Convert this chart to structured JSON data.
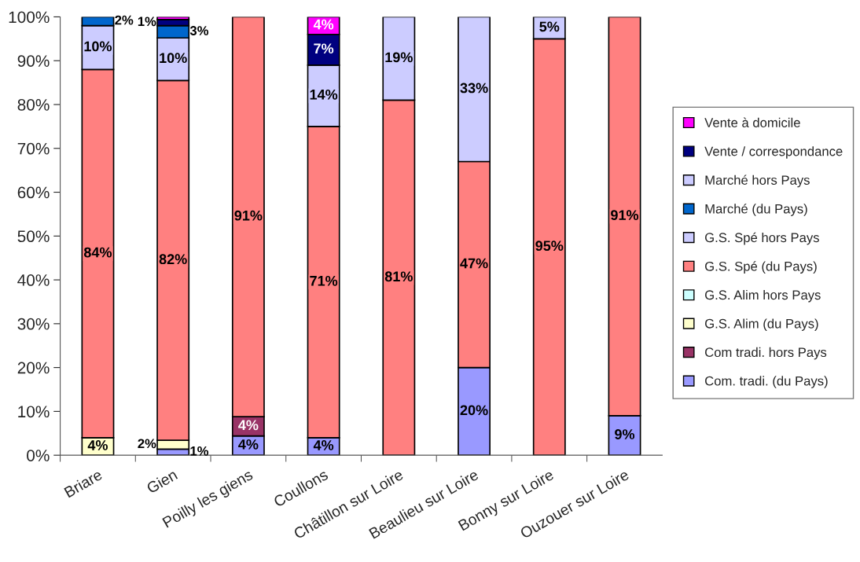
{
  "chart_data": {
    "type": "bar",
    "stacked": true,
    "categories": [
      "Briare",
      "Gien",
      "Poilly les giens",
      "Coullons",
      "Châtillon sur Loire",
      "Beaulieu sur Loire",
      "Bonny sur Loire",
      "Ouzouer sur Loire"
    ],
    "series": [
      {
        "name": "Com. tradi. (du Pays)",
        "color": "#9999ff",
        "values": [
          null,
          1.4,
          4.4,
          4,
          null,
          20,
          null,
          9
        ],
        "value_labels": [
          null,
          "1%",
          "4%",
          "4%",
          null,
          "20%",
          null,
          "9%"
        ]
      },
      {
        "name": "Com tradi. hors Pays",
        "color": "#993366",
        "values": [
          null,
          null,
          4.4,
          null,
          null,
          null,
          null,
          null
        ],
        "value_labels": [
          null,
          null,
          "4%",
          null,
          null,
          null,
          null,
          null
        ]
      },
      {
        "name": "G.S. Alim (du Pays)",
        "color": "#ffffcc",
        "values": [
          4,
          2,
          null,
          null,
          null,
          null,
          null,
          null
        ],
        "value_labels": [
          "4%",
          "2%",
          null,
          null,
          null,
          null,
          null,
          null
        ]
      },
      {
        "name": "G.S. Alim hors Pays",
        "color": "#ccffff",
        "values": [
          null,
          null,
          null,
          null,
          null,
          null,
          null,
          null
        ],
        "value_labels": [
          null,
          null,
          null,
          null,
          null,
          null,
          null,
          null
        ]
      },
      {
        "name": "G.S. Spé (du Pays)",
        "color": "#ff8080",
        "values": [
          84,
          82.1,
          91.2,
          71,
          81,
          47,
          95,
          91
        ],
        "value_labels": [
          "84%",
          "82%",
          "91%",
          "71%",
          "81%",
          "47%",
          "95%",
          "91%"
        ]
      },
      {
        "name": "G.S. Spé hors Pays",
        "color": "#ccccff",
        "values": [
          10,
          9.7,
          null,
          14,
          19,
          33,
          5,
          null
        ],
        "value_labels": [
          "10%",
          "10%",
          null,
          "14%",
          "19%",
          "33%",
          "5%",
          null
        ]
      },
      {
        "name": "Marché (du Pays)",
        "color": "#0066cc",
        "values": [
          2,
          2.8,
          null,
          null,
          null,
          null,
          null,
          null
        ],
        "value_labels": [
          "2%",
          "3%",
          null,
          null,
          null,
          null,
          null,
          null
        ]
      },
      {
        "name": "Marché hors Pays",
        "color": "#ccccff",
        "values": [
          null,
          null,
          null,
          null,
          null,
          null,
          null,
          null
        ],
        "value_labels": [
          null,
          null,
          null,
          null,
          null,
          null,
          null,
          null
        ]
      },
      {
        "name": "Vente / correspondance",
        "color": "#000080",
        "values": [
          null,
          1.4,
          null,
          7,
          null,
          null,
          null,
          null
        ],
        "value_labels": [
          null,
          "1%",
          null,
          "7%",
          null,
          null,
          null,
          null
        ]
      },
      {
        "name": "Vente à domicile",
        "color": "#ff00ff",
        "values": [
          null,
          0.6,
          null,
          4,
          null,
          null,
          null,
          null
        ],
        "value_labels": [
          null,
          null,
          null,
          "4%",
          null,
          null,
          null,
          null
        ]
      }
    ],
    "ylim": [
      0,
      100
    ],
    "yticks": [
      {
        "value": 0,
        "label": "0%"
      },
      {
        "value": 10,
        "label": "10%"
      },
      {
        "value": 20,
        "label": "20%"
      },
      {
        "value": 30,
        "label": "30%"
      },
      {
        "value": 40,
        "label": "40%"
      },
      {
        "value": 50,
        "label": "50%"
      },
      {
        "value": 60,
        "label": "60%"
      },
      {
        "value": 70,
        "label": "70%"
      },
      {
        "value": 80,
        "label": "80%"
      },
      {
        "value": 90,
        "label": "90%"
      },
      {
        "value": 100,
        "label": "100%"
      }
    ],
    "grid": false,
    "legend": "right"
  }
}
